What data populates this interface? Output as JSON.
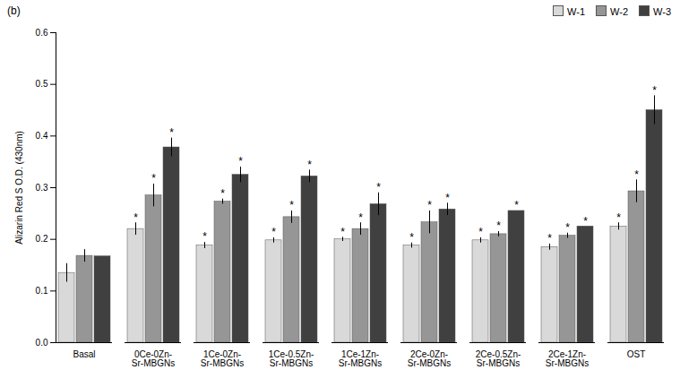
{
  "chart_data": {
    "type": "bar",
    "title": "(b)",
    "y_label": "Alizarin Red S O.D. (430nm)",
    "categories": [
      "Basal",
      "0Ce-0Zn-Sr-MBGNs",
      "1Ce-0Zn-Sr-MBGNs",
      "1Ce-0.5Zn-Sr-MBGNs",
      "1Ce-1Zn-Sr-MBGNs",
      "2Ce-0Zn-Sr-MBGNs",
      "2Ce-0.5Zn-Sr-MBGNs",
      "2Ce-1Zn-Sr-MBGNs",
      "OST"
    ],
    "series": [
      {
        "name": "W-1",
        "color": "#d9d9d9",
        "values": [
          0.135,
          0.22,
          0.188,
          0.198,
          0.2,
          0.188,
          0.198,
          0.185,
          0.225
        ],
        "errors": [
          0.018,
          0.012,
          0.006,
          0.005,
          0.004,
          0.005,
          0.005,
          0.006,
          0.007
        ],
        "significance": [
          null,
          "*",
          "*",
          "*",
          "*",
          "*",
          "*",
          "*",
          "*"
        ]
      },
      {
        "name": "W-2",
        "color": "#969696",
        "values": [
          0.168,
          0.285,
          0.273,
          0.243,
          0.22,
          0.233,
          0.21,
          0.207,
          0.293
        ],
        "errors": [
          0.012,
          0.022,
          0.005,
          0.012,
          0.012,
          0.022,
          0.005,
          0.005,
          0.022
        ],
        "significance": [
          null,
          "*",
          "*",
          "*",
          "*",
          "*",
          "*",
          "*",
          "*"
        ]
      },
      {
        "name": "W-3",
        "color": "#404040",
        "values": [
          0.167,
          0.378,
          0.325,
          0.322,
          0.268,
          0.258,
          0.255,
          0.225,
          0.45
        ],
        "errors": [
          0.0,
          0.018,
          0.015,
          0.012,
          0.022,
          0.012,
          0.0,
          0.0,
          0.028
        ],
        "significance": [
          null,
          "*",
          "*",
          "*",
          "*",
          "*",
          "*",
          "*",
          "*"
        ]
      }
    ],
    "ylim": [
      0,
      0.6
    ],
    "yticks": [
      {
        "value": 0,
        "label": "0.0"
      },
      0.1,
      0.2,
      0.3,
      0.4,
      0.5,
      0.6
    ],
    "grid": false,
    "legend": "top-right"
  }
}
